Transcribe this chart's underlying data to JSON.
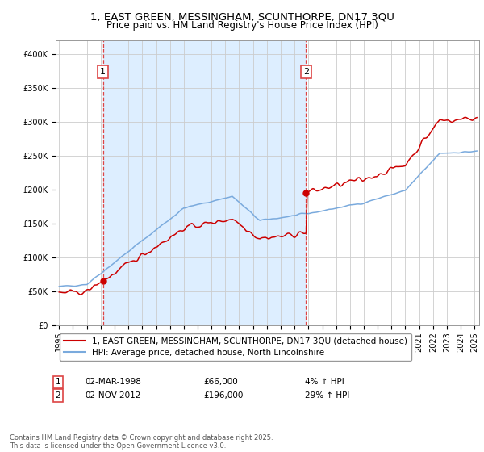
{
  "title_line1": "1, EAST GREEN, MESSINGHAM, SCUNTHORPE, DN17 3QU",
  "title_line2": "Price paid vs. HM Land Registry's House Price Index (HPI)",
  "ylim": [
    0,
    420000
  ],
  "yticks": [
    0,
    50000,
    100000,
    150000,
    200000,
    250000,
    300000,
    350000,
    400000
  ],
  "purchase1_price": 66000,
  "purchase2_price": 196000,
  "legend_property": "1, EAST GREEN, MESSINGHAM, SCUNTHORPE, DN17 3QU (detached house)",
  "legend_hpi": "HPI: Average price, detached house, North Lincolnshire",
  "property_color": "#cc0000",
  "hpi_color": "#7aaadd",
  "shade_color": "#ddeeff",
  "vline_color": "#dd4444",
  "annotation1_date": "02-MAR-1998",
  "annotation1_price": "£66,000",
  "annotation1_pct": "4% ↑ HPI",
  "annotation2_date": "02-NOV-2012",
  "annotation2_price": "£196,000",
  "annotation2_pct": "29% ↑ HPI",
  "footer": "Contains HM Land Registry data © Crown copyright and database right 2025.\nThis data is licensed under the Open Government Licence v3.0.",
  "background_color": "#ffffff",
  "grid_color": "#cccccc",
  "title_fontsize": 9.5,
  "subtitle_fontsize": 8.5,
  "tick_fontsize": 7,
  "legend_fontsize": 7.5,
  "annot_fontsize": 7.5,
  "footer_fontsize": 6
}
